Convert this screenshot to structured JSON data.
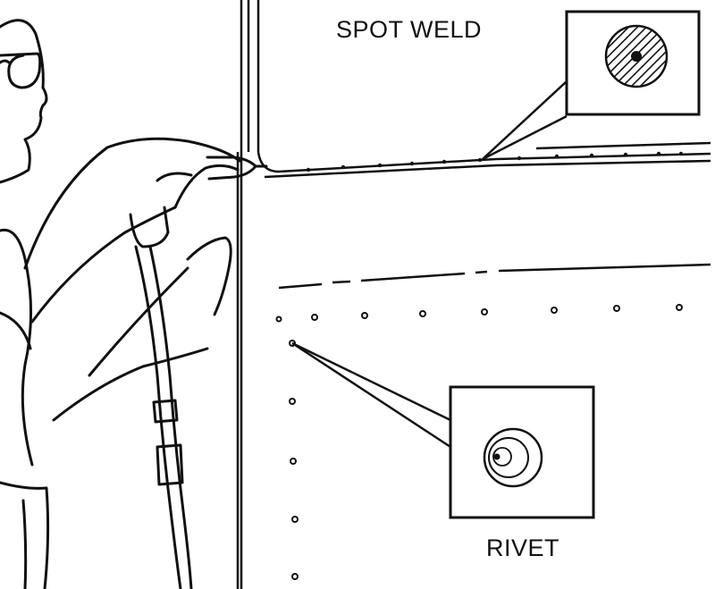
{
  "labels": {
    "spot_weld": "SPOT WELD",
    "rivet": "RIVET"
  },
  "colors": {
    "ink": "#111111",
    "paper": "#ffffff"
  }
}
